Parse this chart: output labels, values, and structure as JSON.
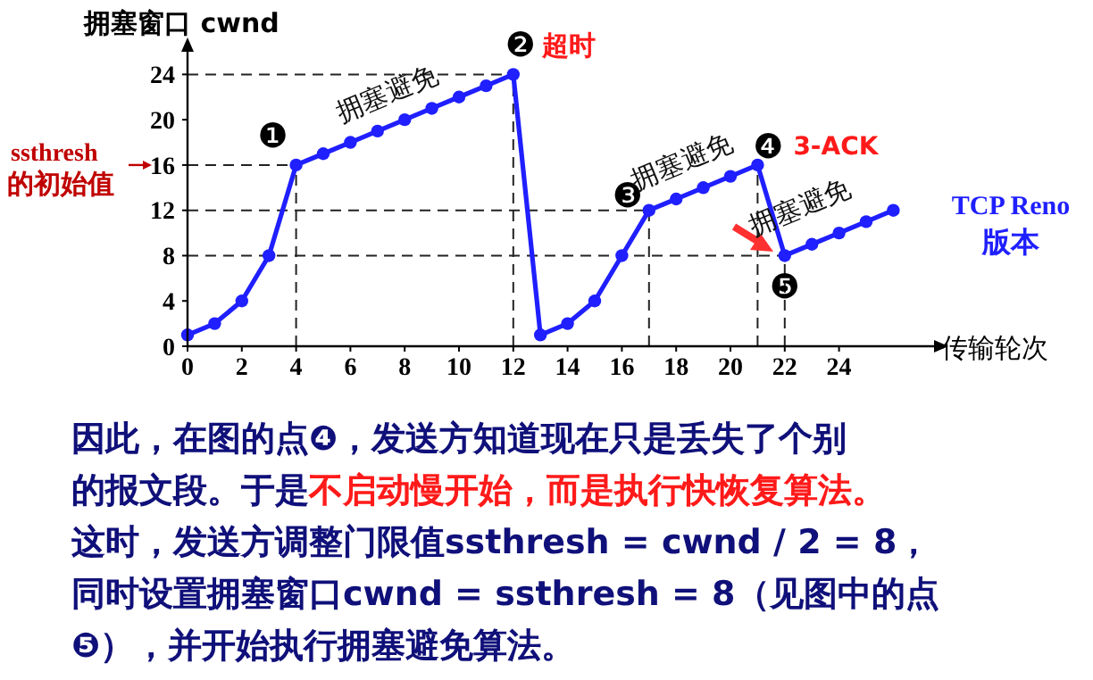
{
  "chart_data": {
    "type": "line",
    "ylabel": "拥塞窗口 cwnd",
    "xlabel": "传输轮次",
    "x": [
      0,
      1,
      2,
      3,
      4,
      5,
      6,
      7,
      8,
      9,
      10,
      11,
      12,
      13,
      14,
      15,
      16,
      17,
      18,
      19,
      20,
      21,
      22,
      23,
      24,
      25,
      26
    ],
    "series": [
      {
        "color": "#1f1fff",
        "values": [
          1,
          2,
          4,
          8,
          16,
          17,
          18,
          19,
          20,
          21,
          22,
          23,
          24,
          1,
          2,
          4,
          8,
          12,
          13,
          14,
          15,
          16,
          8,
          9,
          10,
          11,
          12
        ]
      }
    ],
    "xlim": [
      0,
      27.5
    ],
    "ylim": [
      0,
      26
    ],
    "xticks": [
      0,
      2,
      4,
      6,
      8,
      10,
      12,
      14,
      16,
      18,
      20,
      22,
      24
    ],
    "yticks": [
      0,
      4,
      8,
      12,
      16,
      20,
      24
    ],
    "marker": "circle",
    "line_style": "solid",
    "ref_lines": [
      {
        "axis": "y",
        "value": 24,
        "line_style": "dashed"
      },
      {
        "axis": "y",
        "value": 16,
        "line_style": "dashed"
      },
      {
        "axis": "y",
        "value": 12,
        "line_style": "dashed"
      },
      {
        "axis": "y",
        "value": 8,
        "line_style": "dashed"
      },
      {
        "axis": "x",
        "value": 4,
        "line_style": "dashed"
      },
      {
        "axis": "x",
        "value": 12,
        "line_style": "dashed"
      },
      {
        "axis": "x",
        "value": 17,
        "line_style": "dashed"
      },
      {
        "axis": "x",
        "value": 21,
        "line_style": "dashed"
      },
      {
        "axis": "x",
        "value": 22,
        "line_style": "dashed"
      }
    ],
    "annotations": [
      {
        "text": "❶",
        "x": 4,
        "y": 16
      },
      {
        "text": "❷",
        "x": 12,
        "y": 24
      },
      {
        "text": "超时",
        "x": 12,
        "y": 24
      },
      {
        "text": "❸",
        "x": 17,
        "y": 12
      },
      {
        "text": "❹",
        "x": 21,
        "y": 16
      },
      {
        "text": "3-ACK",
        "x": 21,
        "y": 16
      },
      {
        "text": "❺",
        "x": 22,
        "y": 8
      },
      {
        "text": "拥塞避免",
        "x": 8,
        "y": 20
      },
      {
        "text": "拥塞避免",
        "x": 19,
        "y": 14
      },
      {
        "text": "拥塞避免",
        "x": 24,
        "y": 10
      },
      "ssthresh",
      "的初始值",
      "TCP Reno",
      "版本",
      "因此，在图的点❹，发送方知道现在只是丢失了个别",
      "的报文段。于是",
      "不启动慢开始，而是执行快恢复算法。",
      "这时，发送方调整门限值ssthresh = cwnd / 2 = 8，",
      "同时设置拥塞窗口cwnd = ssthresh = 8（见图中的点",
      "❺），并开始执行拥塞避免算法。"
    ]
  }
}
